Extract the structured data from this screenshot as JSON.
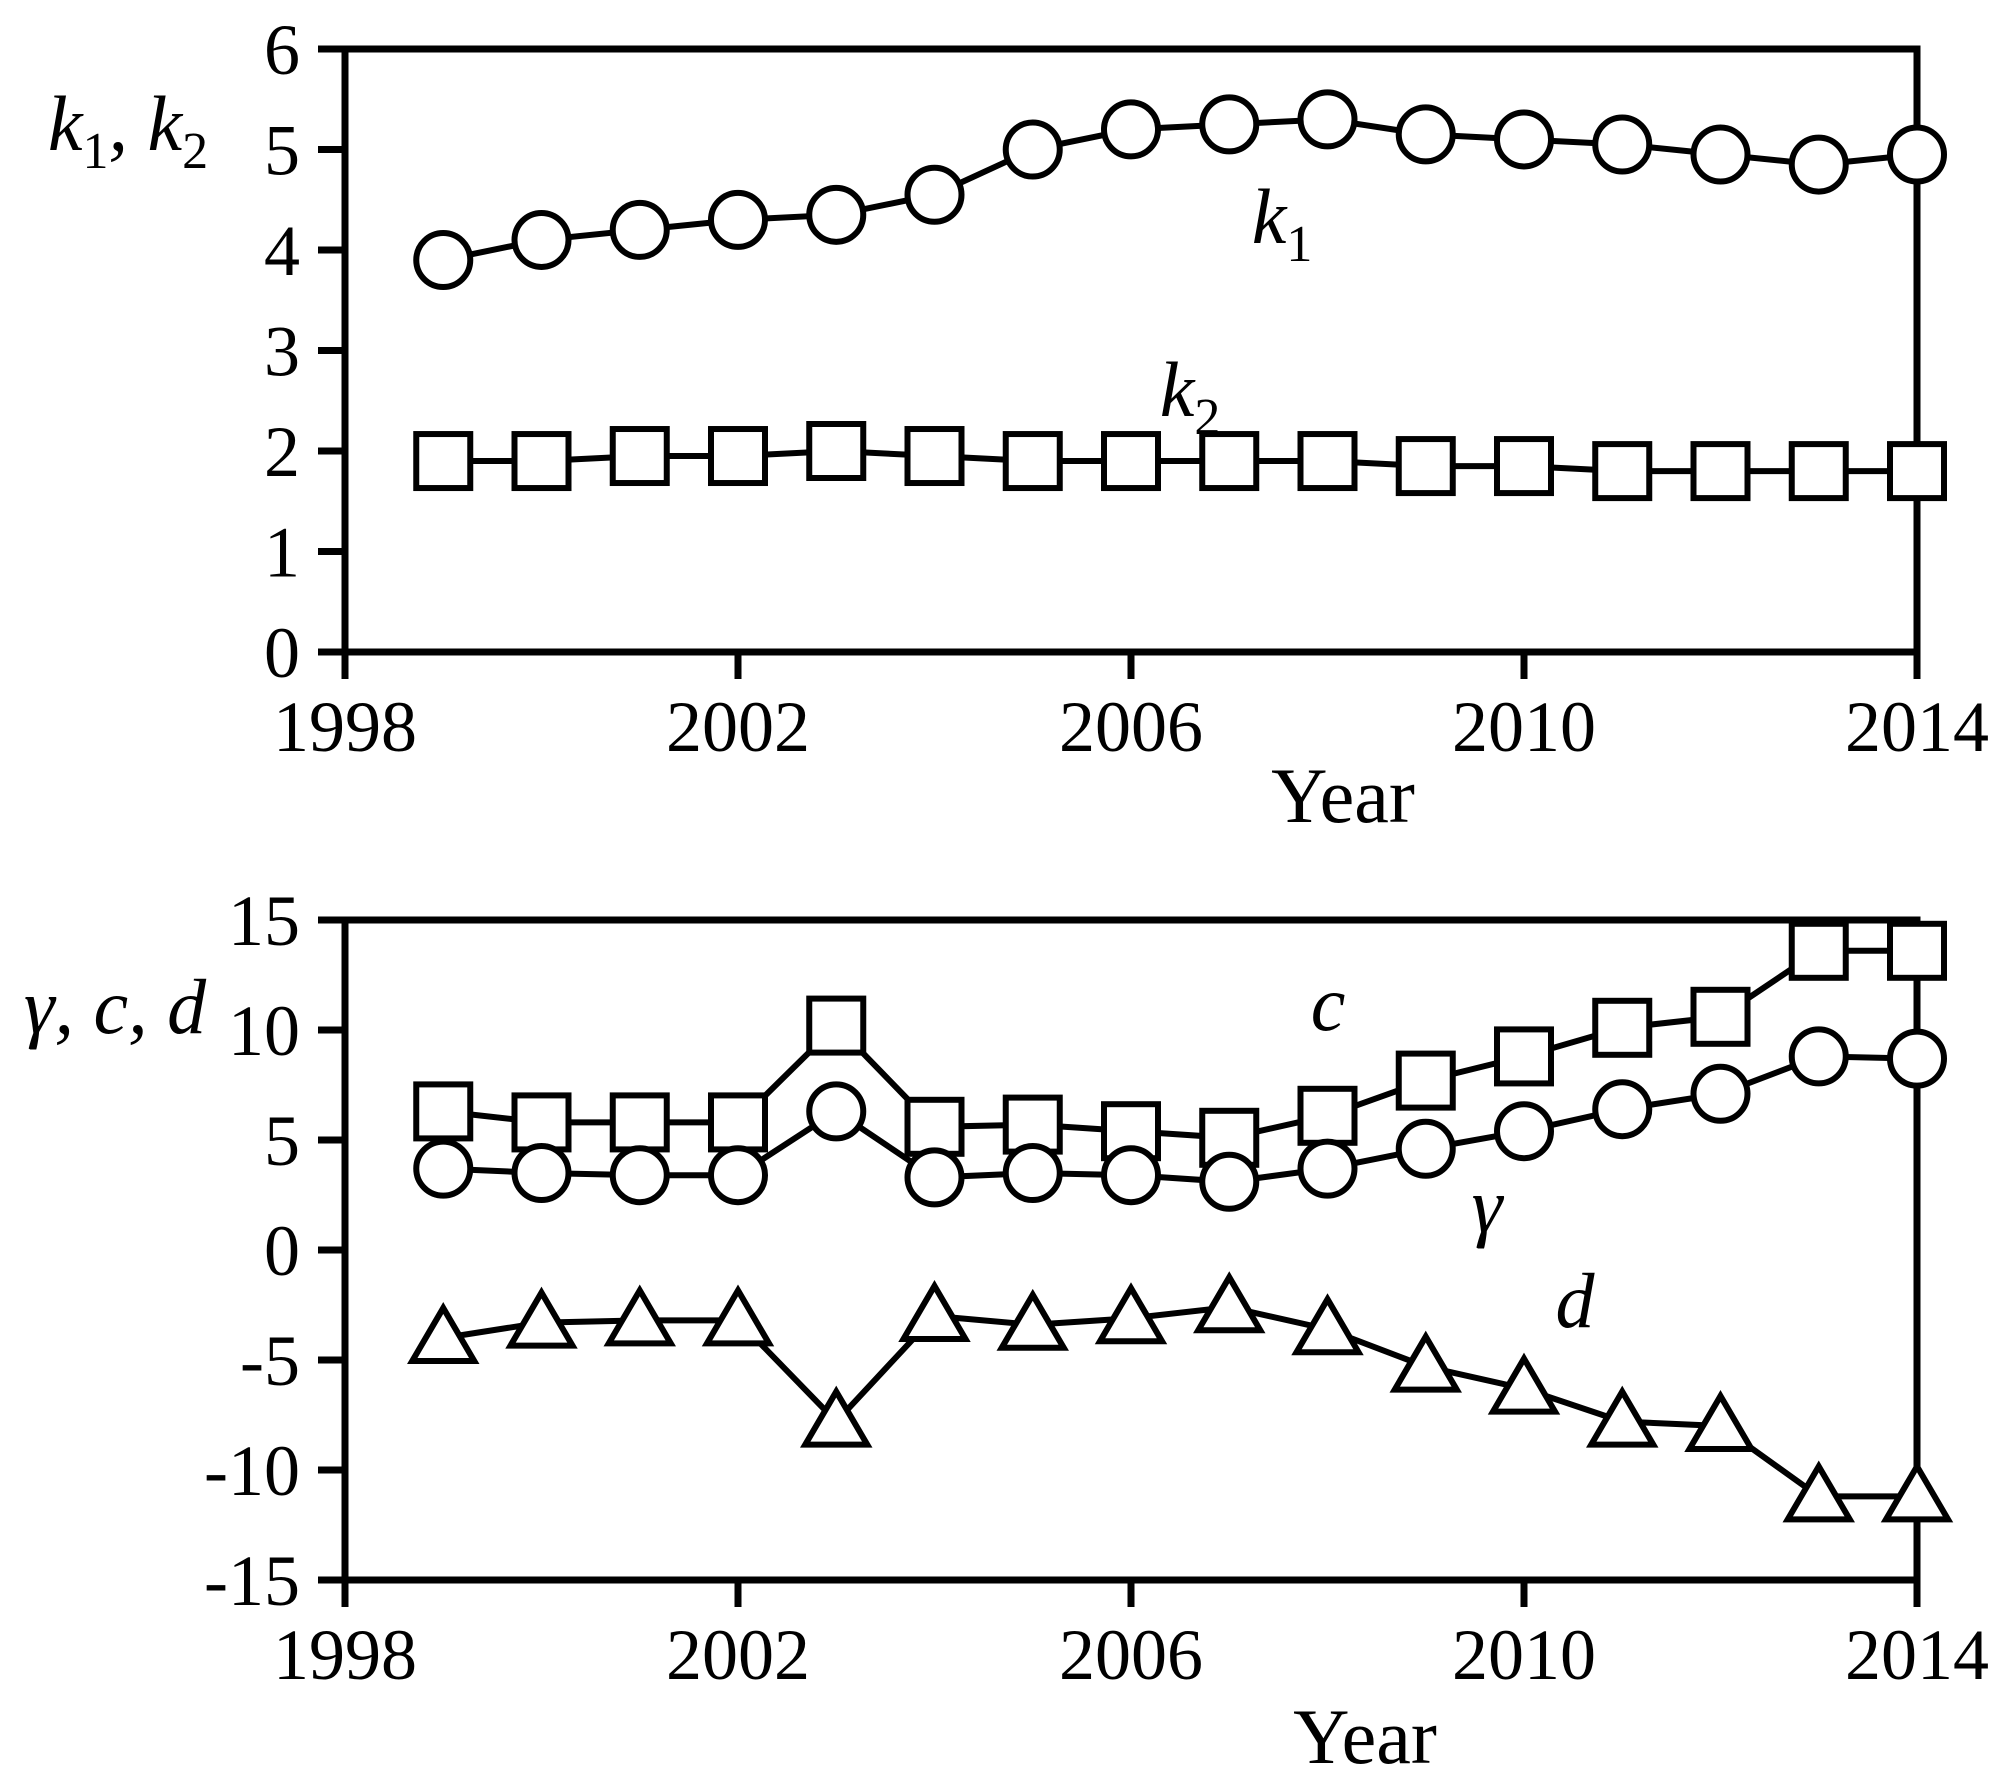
{
  "colors": {
    "ink": "#000000",
    "background": "#ffffff",
    "marker_fill": "#ffffff"
  },
  "chart_data": [
    {
      "type": "line",
      "title": "",
      "xlabel": "Year",
      "ylabel": "k1, k2",
      "ylabel_parts": [
        "k",
        "1",
        ", k",
        "2"
      ],
      "xlim": [
        1998,
        2014
      ],
      "ylim": [
        0,
        6
      ],
      "x_ticks": [
        1998,
        2002,
        2006,
        2010,
        2014
      ],
      "y_ticks": [
        0,
        1,
        2,
        3,
        4,
        5,
        6
      ],
      "grid": false,
      "legend_position": "inline-annotations",
      "x": [
        1999,
        2000,
        2001,
        2002,
        2003,
        2004,
        2005,
        2006,
        2007,
        2008,
        2009,
        2010,
        2011,
        2012,
        2013,
        2014
      ],
      "series": [
        {
          "name": "k1",
          "marker": "circle",
          "label_main": "k",
          "label_sub": "1",
          "values": [
            3.9,
            4.1,
            4.2,
            4.3,
            4.35,
            4.55,
            5.0,
            5.2,
            5.25,
            5.3,
            5.15,
            5.1,
            5.05,
            4.95,
            4.85,
            4.95
          ]
        },
        {
          "name": "k2",
          "marker": "square",
          "label_main": "k",
          "label_sub": "2",
          "values": [
            1.9,
            1.9,
            1.95,
            1.95,
            2.0,
            1.95,
            1.9,
            1.9,
            1.9,
            1.9,
            1.85,
            1.85,
            1.8,
            1.8,
            1.8,
            1.8
          ]
        }
      ]
    },
    {
      "type": "line",
      "title": "",
      "xlabel": "Year",
      "ylabel": "γ, c, d",
      "xlim": [
        1998,
        2014
      ],
      "ylim": [
        -15,
        15
      ],
      "x_ticks": [
        1998,
        2002,
        2006,
        2010,
        2014
      ],
      "y_ticks": [
        -15,
        -10,
        -5,
        0,
        5,
        10,
        15
      ],
      "grid": false,
      "legend_position": "inline-annotations",
      "x": [
        1999,
        2000,
        2001,
        2002,
        2003,
        2004,
        2005,
        2006,
        2007,
        2008,
        2009,
        2010,
        2011,
        2012,
        2013,
        2014
      ],
      "series": [
        {
          "name": "c",
          "marker": "square",
          "label_main": "c",
          "label_sub": "",
          "values": [
            6.3,
            5.8,
            5.8,
            5.8,
            10.2,
            5.6,
            5.7,
            5.4,
            5.1,
            6.1,
            7.7,
            8.8,
            10.1,
            10.6,
            13.6,
            13.6
          ]
        },
        {
          "name": "gamma",
          "marker": "circle",
          "label_main": "γ",
          "label_sub": "",
          "values": [
            3.7,
            3.5,
            3.4,
            3.4,
            6.3,
            3.3,
            3.5,
            3.4,
            3.1,
            3.7,
            4.6,
            5.4,
            6.4,
            7.1,
            8.8,
            8.7
          ]
        },
        {
          "name": "d",
          "marker": "triangle",
          "label_main": "d",
          "label_sub": "",
          "values": [
            -4.0,
            -3.3,
            -3.2,
            -3.2,
            -7.8,
            -3.0,
            -3.4,
            -3.1,
            -2.6,
            -3.6,
            -5.3,
            -6.3,
            -7.8,
            -8.0,
            -11.2,
            -11.2
          ]
        }
      ]
    }
  ]
}
